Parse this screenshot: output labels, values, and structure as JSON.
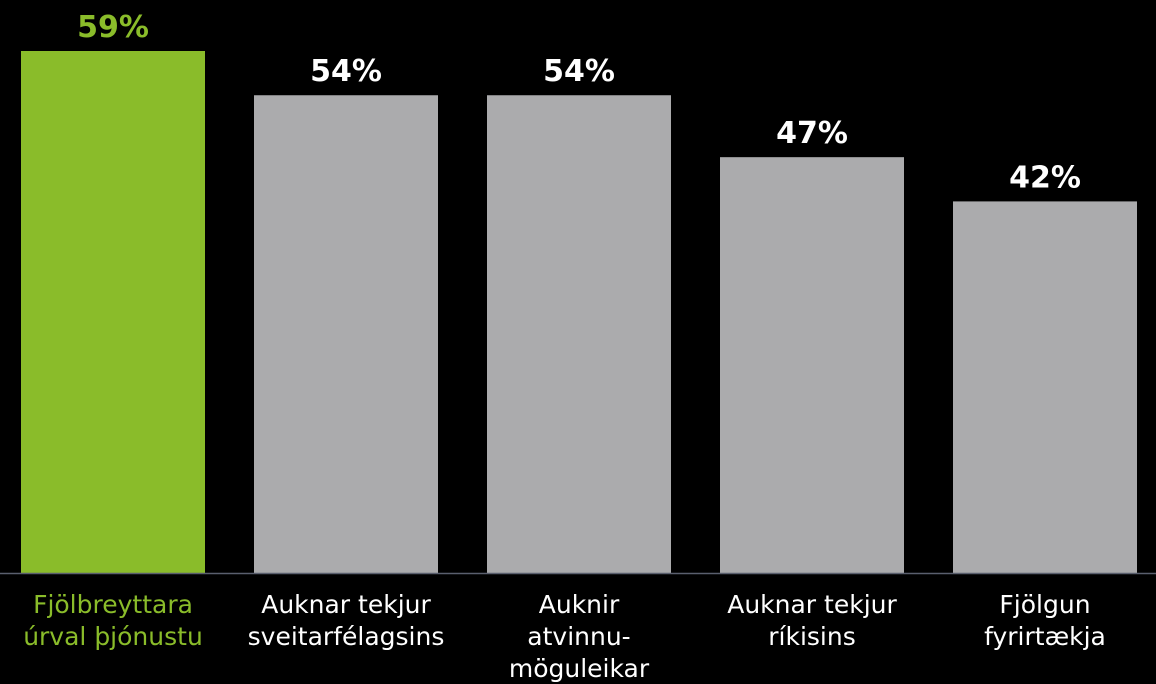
{
  "chart_data": {
    "type": "bar",
    "categories": [
      [
        "Fjölbreyttara",
        "úrval þjónustu"
      ],
      [
        "Auknar tekjur",
        "sveitarfélagsins"
      ],
      [
        "Auknir",
        "atvinnu-",
        "möguleikar"
      ],
      [
        "Auknar tekjur",
        "ríkisins"
      ],
      [
        "Fjölgun",
        "fyrirtækja"
      ]
    ],
    "values": [
      59,
      54,
      54,
      47,
      42
    ],
    "value_labels": [
      "59%",
      "54%",
      "54%",
      "47%",
      "42%"
    ],
    "highlight_index": 0,
    "ylim": [
      0,
      59
    ],
    "grid": false,
    "legend": "none",
    "title": "",
    "xlabel": "",
    "ylabel": ""
  },
  "colors": {
    "background": "#000000",
    "highlight": "#8ABC2A",
    "bar": "#ABABAD",
    "value_text": "#FFFFFF",
    "label_text": "#FFFFFF",
    "axis": "#5A5F6E"
  }
}
